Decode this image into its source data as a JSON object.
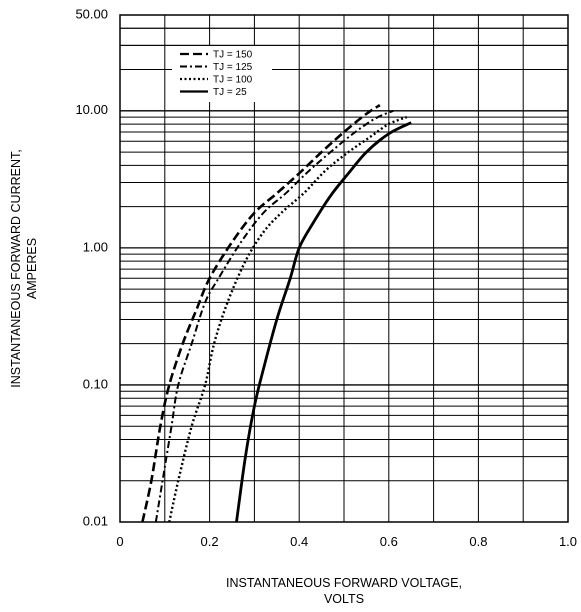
{
  "chart_data": {
    "type": "line",
    "title": "",
    "xlabel": "INSTANTANEOUS FORWARD VOLTAGE,",
    "xlabel_line2": "VOLTS",
    "ylabel": "INSTANTANEOUS FORWARD CURRENT,",
    "ylabel_line2": "AMPERES",
    "xlim": [
      0,
      1.0
    ],
    "ylim": [
      0.01,
      50
    ],
    "yscale": "log",
    "grid": true,
    "legend_position": "top-left",
    "x_ticks": [
      "0",
      "0.2",
      "0.4",
      "0.6",
      "0.8",
      "1.0"
    ],
    "y_ticks": [
      "0.01",
      "0.10",
      "1.00",
      "10.00",
      "50.00"
    ],
    "series": [
      {
        "name": "TJ = 150",
        "dash": "dash",
        "points": [
          [
            0.05,
            0.01
          ],
          [
            0.07,
            0.02
          ],
          [
            0.09,
            0.05
          ],
          [
            0.11,
            0.1
          ],
          [
            0.14,
            0.2
          ],
          [
            0.17,
            0.35
          ],
          [
            0.2,
            0.6
          ],
          [
            0.25,
            1.1
          ],
          [
            0.3,
            1.8
          ],
          [
            0.35,
            2.5
          ],
          [
            0.4,
            3.5
          ],
          [
            0.45,
            5.0
          ],
          [
            0.5,
            7.0
          ],
          [
            0.55,
            9.5
          ],
          [
            0.58,
            11.0
          ]
        ]
      },
      {
        "name": "TJ = 125",
        "dash": "dash-dot",
        "points": [
          [
            0.08,
            0.01
          ],
          [
            0.095,
            0.02
          ],
          [
            0.115,
            0.05
          ],
          [
            0.13,
            0.1
          ],
          [
            0.16,
            0.2
          ],
          [
            0.19,
            0.4
          ],
          [
            0.22,
            0.6
          ],
          [
            0.27,
            1.1
          ],
          [
            0.32,
            1.8
          ],
          [
            0.37,
            2.5
          ],
          [
            0.42,
            3.6
          ],
          [
            0.47,
            5.0
          ],
          [
            0.52,
            6.8
          ],
          [
            0.57,
            8.8
          ],
          [
            0.61,
            10.0
          ]
        ]
      },
      {
        "name": "TJ = 100",
        "dash": "dot",
        "points": [
          [
            0.11,
            0.01
          ],
          [
            0.13,
            0.02
          ],
          [
            0.16,
            0.05
          ],
          [
            0.19,
            0.1
          ],
          [
            0.21,
            0.2
          ],
          [
            0.24,
            0.4
          ],
          [
            0.28,
            0.8
          ],
          [
            0.32,
            1.3
          ],
          [
            0.36,
            1.8
          ],
          [
            0.41,
            2.5
          ],
          [
            0.46,
            3.7
          ],
          [
            0.51,
            5.0
          ],
          [
            0.56,
            6.5
          ],
          [
            0.6,
            8.0
          ],
          [
            0.64,
            9.0
          ]
        ]
      },
      {
        "name": "TJ = 25",
        "dash": "solid",
        "points": [
          [
            0.26,
            0.01
          ],
          [
            0.28,
            0.03
          ],
          [
            0.3,
            0.07
          ],
          [
            0.32,
            0.13
          ],
          [
            0.35,
            0.3
          ],
          [
            0.38,
            0.6
          ],
          [
            0.4,
            1.0
          ],
          [
            0.43,
            1.5
          ],
          [
            0.47,
            2.4
          ],
          [
            0.51,
            3.5
          ],
          [
            0.55,
            5.0
          ],
          [
            0.6,
            6.8
          ],
          [
            0.65,
            8.2
          ]
        ]
      }
    ]
  }
}
